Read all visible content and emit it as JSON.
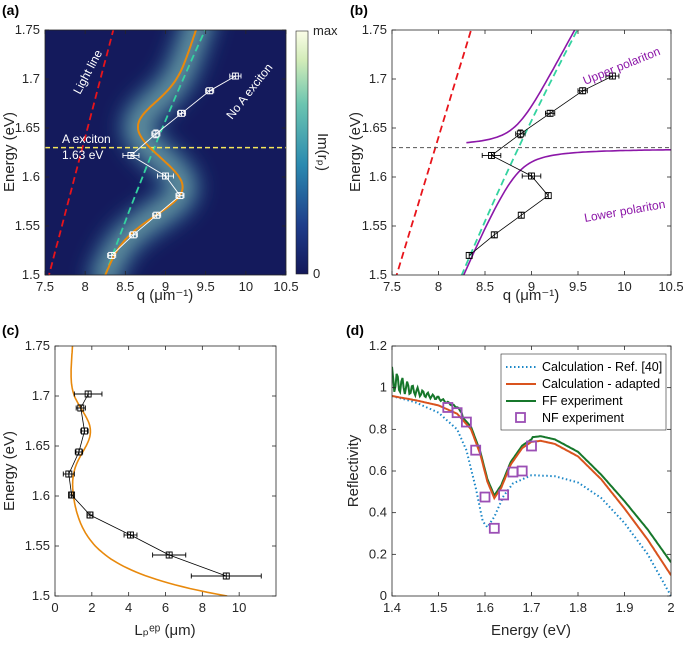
{
  "colors": {
    "lightline": "#e8141b",
    "noexciton": "#34d3a0",
    "orange": "#e8890c",
    "purple": "#8c17a8",
    "exciton": "#f5e65a",
    "calc_ref": "#1b87c7",
    "calc_adapt": "#d9531e",
    "ff": "#16772b",
    "nf": "#9b4fb5",
    "axis": "#262626"
  },
  "chart_data": [
    {
      "id": "a",
      "panel_label": "(a)",
      "type": "heatmap",
      "xlabel": "q (μm⁻¹)",
      "ylabel": "Energy (eV)",
      "xlim": [
        7.5,
        10.5
      ],
      "ylim": [
        1.5,
        1.75
      ],
      "xticks": [
        "7.5",
        "8",
        "8.5",
        "9",
        "9.5",
        "10",
        "10.5"
      ],
      "yticks": [
        "1.5",
        "1.55",
        "1.6",
        "1.65",
        "1.7",
        "1.75"
      ],
      "colorbar": {
        "label": "Im(rₚ)",
        "max_label": "max",
        "min_label": "0"
      },
      "annotations": {
        "light_line": "Light line",
        "no_exciton": "No A exciton",
        "exciton_line1": "A exciton",
        "exciton_line2": "1.63 eV"
      },
      "exciton_energy": 1.63,
      "data_points": [
        {
          "q": 8.33,
          "E": 1.52,
          "xerr": 0.05,
          "yerr": 0.003
        },
        {
          "q": 8.6,
          "E": 1.541,
          "xerr": 0.05,
          "yerr": 0.003
        },
        {
          "q": 8.89,
          "E": 1.561,
          "xerr": 0.05,
          "yerr": 0.003
        },
        {
          "q": 9.18,
          "E": 1.581,
          "xerr": 0.05,
          "yerr": 0.003
        },
        {
          "q": 9.0,
          "E": 1.601,
          "xerr": 0.1,
          "yerr": 0.003
        },
        {
          "q": 8.57,
          "E": 1.622,
          "xerr": 0.1,
          "yerr": 0.003
        },
        {
          "q": 8.88,
          "E": 1.644,
          "xerr": 0.05,
          "yerr": 0.004
        },
        {
          "q": 9.2,
          "E": 1.665,
          "xerr": 0.05,
          "yerr": 0.003
        },
        {
          "q": 9.55,
          "E": 1.688,
          "xerr": 0.05,
          "yerr": 0.003
        },
        {
          "q": 9.87,
          "E": 1.703,
          "xerr": 0.07,
          "yerr": 0.003
        }
      ]
    },
    {
      "id": "b",
      "panel_label": "(b)",
      "type": "line",
      "xlabel": "q (μm⁻¹)",
      "ylabel": "Energy (eV)",
      "xlim": [
        7.5,
        10.5
      ],
      "ylim": [
        1.5,
        1.75
      ],
      "xticks": [
        "7.5",
        "8",
        "8.5",
        "9",
        "9.5",
        "10",
        "10.5"
      ],
      "yticks": [
        "1.5",
        "1.55",
        "1.6",
        "1.65",
        "1.7",
        "1.75"
      ],
      "annotations": {
        "upper": "Upper polariton",
        "lower": "Lower polariton"
      },
      "exciton_energy": 1.63,
      "data_points": [
        {
          "q": 8.33,
          "E": 1.52,
          "yerr": 0.003
        },
        {
          "q": 8.6,
          "E": 1.541,
          "yerr": 0.003
        },
        {
          "q": 8.89,
          "E": 1.561,
          "yerr": 0.003
        },
        {
          "q": 9.18,
          "E": 1.581,
          "yerr": 0.003
        },
        {
          "q": 9.0,
          "E": 1.601,
          "xerr": 0.1,
          "yerr": 0.003
        },
        {
          "q": 8.57,
          "E": 1.622,
          "xerr": 0.1,
          "yerr": 0.003
        },
        {
          "q": 8.88,
          "E": 1.644,
          "xerr": 0.05,
          "yerr": 0.004
        },
        {
          "q": 9.2,
          "E": 1.665,
          "xerr": 0.05,
          "yerr": 0.003
        },
        {
          "q": 9.55,
          "E": 1.688,
          "xerr": 0.05,
          "yerr": 0.003
        },
        {
          "q": 9.87,
          "E": 1.703,
          "xerr": 0.07,
          "yerr": 0.003
        }
      ]
    },
    {
      "id": "c",
      "panel_label": "(c)",
      "type": "line",
      "xlabel": "Lₚᵉᵖ (μm)",
      "ylabel": "Energy (eV)",
      "xlim": [
        0,
        12
      ],
      "ylim": [
        1.5,
        1.75
      ],
      "xticks": [
        "0",
        "2",
        "4",
        "6",
        "8",
        "10"
      ],
      "yticks": [
        "1.5",
        "1.55",
        "1.6",
        "1.65",
        "1.7",
        "1.75"
      ],
      "data_points": [
        {
          "L": 9.3,
          "E": 1.52,
          "xerr": 1.9
        },
        {
          "L": 6.2,
          "E": 1.541,
          "xerr": 0.9
        },
        {
          "L": 4.1,
          "E": 1.561,
          "xerr": 0.35
        },
        {
          "L": 1.9,
          "E": 1.581,
          "xerr": 0.15
        },
        {
          "L": 0.9,
          "E": 1.601,
          "xerr": 0.1
        },
        {
          "L": 0.75,
          "E": 1.622,
          "xerr": 0.3
        },
        {
          "L": 1.3,
          "E": 1.644,
          "xerr": 0.2
        },
        {
          "L": 1.6,
          "E": 1.665,
          "xerr": 0.2
        },
        {
          "L": 1.4,
          "E": 1.688,
          "xerr": 0.25
        },
        {
          "L": 1.8,
          "E": 1.702,
          "xerr": 0.75
        }
      ]
    },
    {
      "id": "d",
      "panel_label": "(d)",
      "type": "line",
      "xlabel": "Energy (eV)",
      "ylabel": "Reflectivity",
      "xlim": [
        1.4,
        2.0
      ],
      "ylim": [
        0,
        1.2
      ],
      "xticks": [
        "1.4",
        "1.5",
        "1.6",
        "1.7",
        "1.8",
        "1.9",
        "2"
      ],
      "yticks": [
        "0",
        "0.2",
        "0.4",
        "0.6",
        "0.8",
        "1",
        "1.2"
      ],
      "legend_position": "top-right",
      "series": [
        {
          "name": "Calculation - Ref. [40]",
          "style": "dotted"
        },
        {
          "name": "Calculation - adapted",
          "style": "solid"
        },
        {
          "name": "FF experiment",
          "style": "solid"
        },
        {
          "name": "NF experiment",
          "style": "markers",
          "x": [
            1.52,
            1.54,
            1.56,
            1.58,
            1.6,
            1.62,
            1.64,
            1.66,
            1.68,
            1.7
          ],
          "y": [
            0.905,
            0.88,
            0.835,
            0.7,
            0.475,
            0.325,
            0.485,
            0.595,
            0.6,
            0.72
          ]
        }
      ]
    }
  ]
}
